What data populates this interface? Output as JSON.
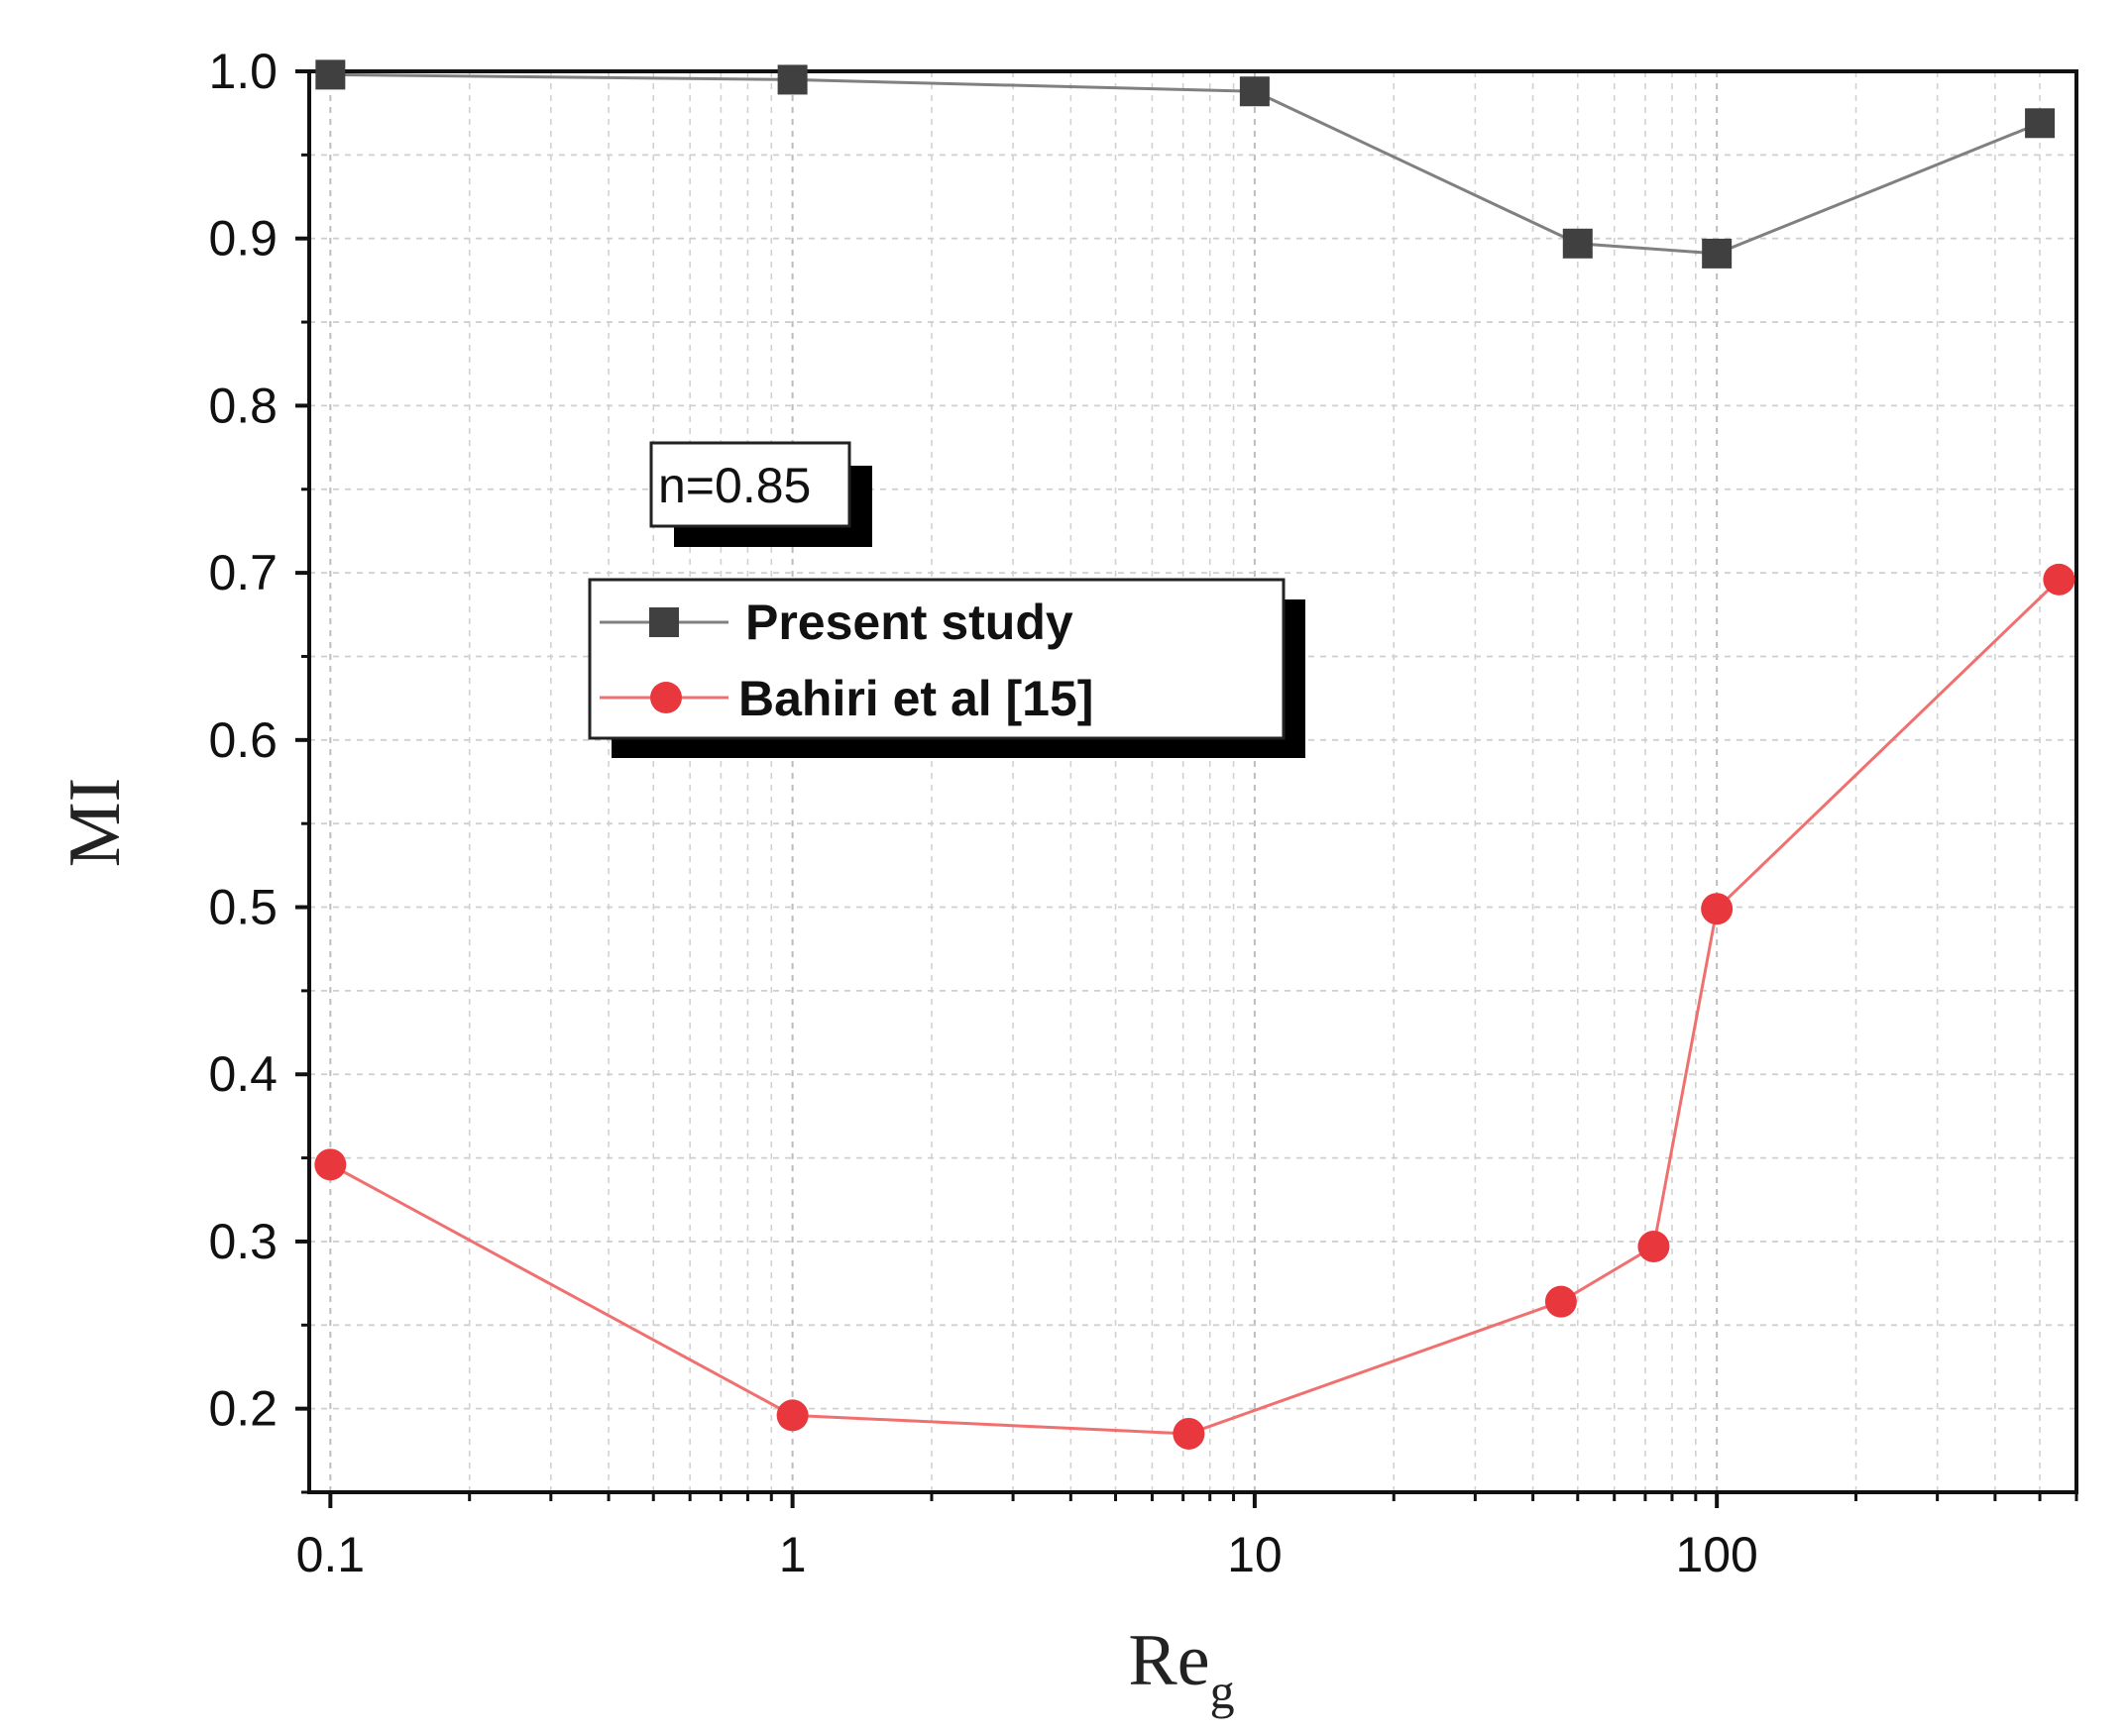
{
  "chart_data": {
    "type": "line",
    "title": "",
    "xlabel": "Re",
    "xlabel_subscript": "g",
    "ylabel": "MI",
    "xscale": "log",
    "xlim": [
      0.09,
      600
    ],
    "ylim": [
      0.15,
      1.0
    ],
    "xticks": [
      0.1,
      1,
      10,
      100
    ],
    "xtick_labels": [
      "0.1",
      "1",
      "10",
      "100"
    ],
    "yticks": [
      0.2,
      0.3,
      0.4,
      0.5,
      0.6,
      0.7,
      0.8,
      0.9,
      1.0
    ],
    "ytick_labels": [
      "0.2",
      "0.3",
      "0.4",
      "0.5",
      "0.6",
      "0.7",
      "0.8",
      "0.9",
      "1.0"
    ],
    "grid": true,
    "legend_position": "upper-left-center",
    "annotation": "n=0.85",
    "series": [
      {
        "name": "Present study",
        "marker": "square",
        "color": "#404040",
        "line_color": "#808080",
        "x": [
          0.1,
          1,
          10,
          50,
          100,
          500
        ],
        "y": [
          0.998,
          0.995,
          0.988,
          0.897,
          0.891,
          0.969
        ]
      },
      {
        "name": "Bahiri et al [15]",
        "marker": "circle",
        "color": "#e8383d",
        "line_color": "#f07070",
        "x": [
          0.1,
          1,
          7.2,
          46,
          73,
          100,
          550
        ],
        "y": [
          0.346,
          0.196,
          0.185,
          0.264,
          0.297,
          0.499,
          0.696
        ]
      }
    ]
  }
}
